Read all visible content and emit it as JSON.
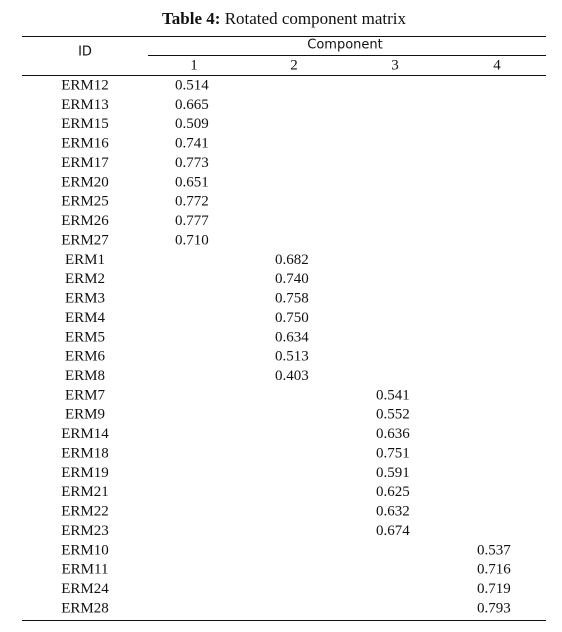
{
  "title": {
    "label": "Table 4:",
    "text": "Rotated component matrix"
  },
  "table": {
    "id_header": "ID",
    "group_header": "Component",
    "columns": [
      "1",
      "2",
      "3",
      "4"
    ],
    "rows": [
      [
        "ERM12",
        "0.514",
        null,
        null,
        null
      ],
      [
        "ERM13",
        "0.665",
        null,
        null,
        null
      ],
      [
        "ERM15",
        "0.509",
        null,
        null,
        null
      ],
      [
        "ERM16",
        "0.741",
        null,
        null,
        null
      ],
      [
        "ERM17",
        "0.773",
        null,
        null,
        null
      ],
      [
        "ERM20",
        "0.651",
        null,
        null,
        null
      ],
      [
        "ERM25",
        "0.772",
        null,
        null,
        null
      ],
      [
        "ERM26",
        "0.777",
        null,
        null,
        null
      ],
      [
        "ERM27",
        "0.710",
        null,
        null,
        null
      ],
      [
        "ERM1",
        null,
        "0.682",
        null,
        null
      ],
      [
        "ERM2",
        null,
        "0.740",
        null,
        null
      ],
      [
        "ERM3",
        null,
        "0.758",
        null,
        null
      ],
      [
        "ERM4",
        null,
        "0.750",
        null,
        null
      ],
      [
        "ERM5",
        null,
        "0.634",
        null,
        null
      ],
      [
        "ERM6",
        null,
        "0.513",
        null,
        null
      ],
      [
        "ERM8",
        null,
        "0.403",
        null,
        null
      ],
      [
        "ERM7",
        null,
        null,
        "0.541",
        null
      ],
      [
        "ERM9",
        null,
        null,
        "0.552",
        null
      ],
      [
        "ERM14",
        null,
        null,
        "0.636",
        null
      ],
      [
        "ERM18",
        null,
        null,
        "0.751",
        null
      ],
      [
        "ERM19",
        null,
        null,
        "0.591",
        null
      ],
      [
        "ERM21",
        null,
        null,
        "0.625",
        null
      ],
      [
        "ERM22",
        null,
        null,
        "0.632",
        null
      ],
      [
        "ERM23",
        null,
        null,
        "0.674",
        null
      ],
      [
        "ERM10",
        null,
        null,
        null,
        "0.537"
      ],
      [
        "ERM11",
        null,
        null,
        null,
        "0.716"
      ],
      [
        "ERM24",
        null,
        null,
        null,
        "0.719"
      ],
      [
        "ERM28",
        null,
        null,
        null,
        "0.793"
      ]
    ]
  }
}
